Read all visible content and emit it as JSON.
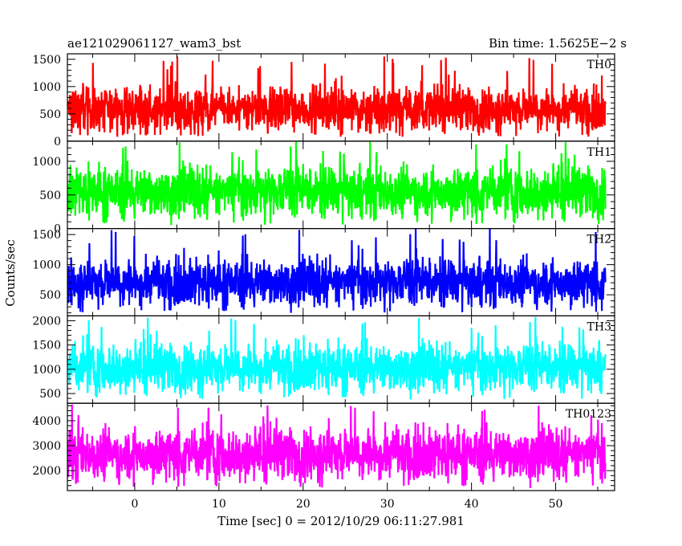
{
  "header": {
    "title": "ae121029061127_wam3_bst",
    "bin_time": "Bin time: 1.5625E−2 s"
  },
  "chart_data": {
    "type": "line",
    "title": "ae121029061127_wam3_bst",
    "ylabel": "Counts/sec",
    "xlabel": "Time [sec] 0 = 2012/10/29 06:11:27.981",
    "xlim": [
      -8.0,
      57.0
    ],
    "x_data_range": [
      -7.9,
      55.9
    ],
    "x_ticks": [
      0,
      10,
      20,
      30,
      40,
      50
    ],
    "x_tick_labels": [
      "0",
      "10",
      "20",
      "30",
      "40",
      "50"
    ],
    "grid": false,
    "legend": "none",
    "panels": [
      {
        "name": "TH0",
        "color": "#ff0000",
        "ylim": [
          0,
          1600
        ],
        "y_ticks": [
          0,
          500,
          1000,
          1500
        ],
        "y_tick_labels": [
          "0",
          "500",
          "1000",
          "1500"
        ],
        "mean": 600,
        "min": 80,
        "max": 1550
      },
      {
        "name": "TH1",
        "color": "#00ff00",
        "ylim": [
          0,
          1300
        ],
        "y_ticks": [
          0,
          500,
          1000
        ],
        "y_tick_labels": [
          "0",
          "500",
          "1000"
        ],
        "mean": 560,
        "min": 50,
        "max": 1300
      },
      {
        "name": "TH2",
        "color": "#0000ff",
        "ylim": [
          150,
          1600
        ],
        "y_ticks": [
          500,
          1000,
          1500
        ],
        "y_tick_labels": [
          "500",
          "1000",
          "1500"
        ],
        "mean": 720,
        "min": 200,
        "max": 1600
      },
      {
        "name": "TH3",
        "color": "#00ffff",
        "ylim": [
          300,
          2100
        ],
        "y_ticks": [
          500,
          1000,
          1500,
          2000
        ],
        "y_tick_labels": [
          "500",
          "1000",
          "1500",
          "2000"
        ],
        "mean": 1050,
        "min": 380,
        "max": 2080
      },
      {
        "name": "TH0123",
        "color": "#ff00ff",
        "ylim": [
          1200,
          4700
        ],
        "y_ticks": [
          2000,
          3000,
          4000
        ],
        "y_tick_labels": [
          "2000",
          "3000",
          "4000"
        ],
        "mean": 2700,
        "min": 1300,
        "max": 4650
      }
    ]
  }
}
